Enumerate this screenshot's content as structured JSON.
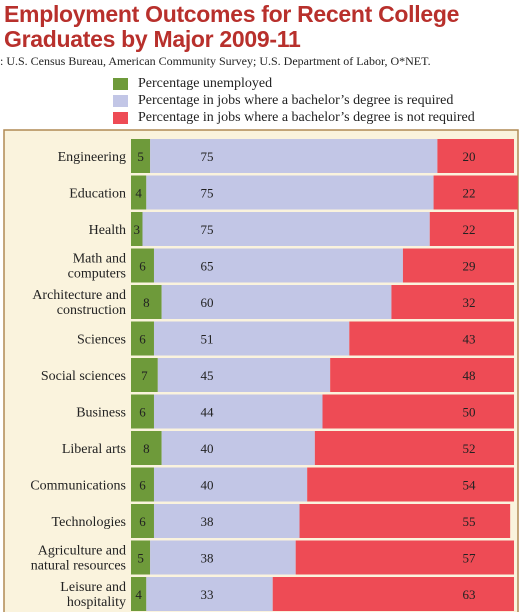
{
  "title": "Employment Outcomes for Recent College Graduates by Major  2009-11",
  "source": ": U.S. Census Bureau, American Community Survey; U.S. Department of Labor, O*NET.",
  "chart_data": {
    "type": "bar",
    "stacked": true,
    "orientation": "horizontal",
    "title": "Employment Outcomes for Recent College Graduates by Major  2009-11",
    "categories": [
      [
        "Engineering"
      ],
      [
        "Education"
      ],
      [
        "Health"
      ],
      [
        "Math and",
        "computers"
      ],
      [
        "Architecture and",
        "construction"
      ],
      [
        "Sciences"
      ],
      [
        "Social sciences"
      ],
      [
        "Business"
      ],
      [
        "Liberal arts"
      ],
      [
        "Communications"
      ],
      [
        "Technologies"
      ],
      [
        "Agriculture and",
        "natural resources"
      ],
      [
        "Leisure and",
        "hospitality"
      ]
    ],
    "series": [
      {
        "name": "Percentage unemployed",
        "color": "#6e9a3a",
        "values": [
          5,
          4,
          3,
          6,
          8,
          6,
          7,
          6,
          8,
          6,
          6,
          5,
          4
        ]
      },
      {
        "name": "Percentage in jobs where a bachelor’s degree is required",
        "color": "#c2c6e6",
        "values": [
          75,
          75,
          75,
          65,
          60,
          51,
          45,
          44,
          40,
          40,
          38,
          38,
          33
        ]
      },
      {
        "name": "Percentage in jobs where a bachelor’s degree is not required",
        "color": "#ee4b55",
        "values": [
          20,
          22,
          22,
          29,
          32,
          43,
          48,
          50,
          52,
          54,
          55,
          57,
          63
        ]
      }
    ],
    "xlim": [
      0,
      100
    ],
    "legend_position": "top",
    "grid": false
  }
}
